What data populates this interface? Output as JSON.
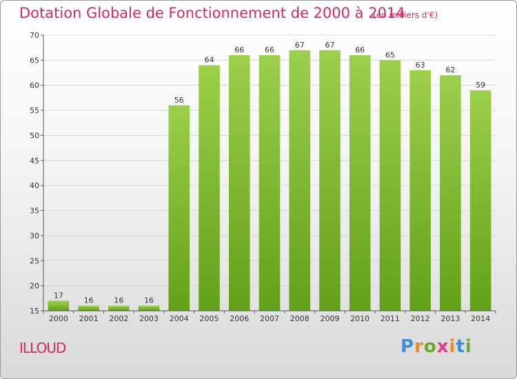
{
  "header": {
    "title": "Dotation Globale de Fonctionnement de 2000 à 2014",
    "subtitle": "(en milliers d'€)"
  },
  "footer": {
    "commune": "ILLOUD",
    "logo_letters": [
      "P",
      "r",
      "o",
      "x",
      "i",
      "t",
      "i"
    ],
    "logo_colors": [
      "#3a8fd8",
      "#f08a1c",
      "#6aaa2a",
      "#e23a8a",
      "#f08a1c",
      "#3a8fd8",
      "#6aaa2a"
    ]
  },
  "chart_data": {
    "type": "bar",
    "title": "Dotation Globale de Fonctionnement de 2000 à 2014",
    "subtitle": "(en milliers d'€)",
    "xlabel": "",
    "ylabel": "",
    "categories": [
      "2000",
      "2001",
      "2002",
      "2003",
      "2004",
      "2005",
      "2006",
      "2007",
      "2008",
      "2009",
      "2010",
      "2011",
      "2012",
      "2013",
      "2014"
    ],
    "values": [
      17,
      16,
      16,
      16,
      56,
      64,
      66,
      66,
      67,
      67,
      66,
      65,
      63,
      62,
      59
    ],
    "ylim": [
      15,
      70
    ],
    "yticks": [
      15,
      20,
      25,
      30,
      35,
      40,
      45,
      50,
      55,
      60,
      65,
      70
    ],
    "grid": true,
    "bar_color_top": "#9ccf4a",
    "bar_color_bottom": "#63a01a"
  }
}
